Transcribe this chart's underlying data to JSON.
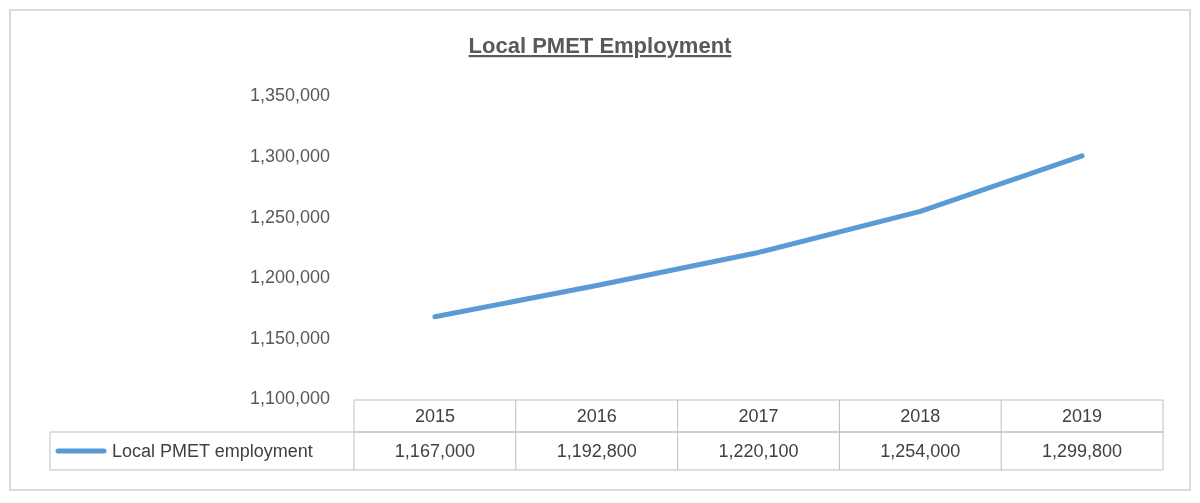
{
  "chart_data": {
    "type": "line",
    "title": "Local PMET Employment",
    "categories": [
      "2015",
      "2016",
      "2017",
      "2018",
      "2019"
    ],
    "series": [
      {
        "name": "Local PMET employment",
        "color": "#5b9bd5",
        "values": [
          1167000,
          1192800,
          1220100,
          1254000,
          1299800
        ],
        "value_labels": [
          "1,167,000",
          "1,192,800",
          "1,220,100",
          "1,254,000",
          "1,299,800"
        ]
      }
    ],
    "ylim": [
      1100000,
      1350000
    ],
    "yticks": [
      {
        "value": 1100000,
        "label": "1,100,000"
      },
      {
        "value": 1150000,
        "label": "1,150,000"
      },
      {
        "value": 1200000,
        "label": "1,200,000"
      },
      {
        "value": 1250000,
        "label": "1,250,000"
      },
      {
        "value": 1300000,
        "label": "1,300,000"
      },
      {
        "value": 1350000,
        "label": "1,350,000"
      }
    ],
    "grid": false,
    "legend": "bottom",
    "marker": "none",
    "line_style": "solid"
  }
}
